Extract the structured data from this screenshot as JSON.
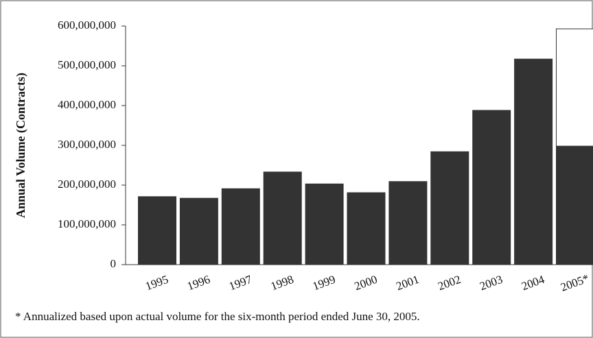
{
  "chart_data": {
    "type": "bar",
    "stacked": true,
    "y_axis_label": "Annual Volume (Contracts)",
    "footnote": "* Annualized based upon actual volume for the six-month period ended June 30, 2005.",
    "categories": [
      "1995",
      "1996",
      "1997",
      "1998",
      "1999",
      "2000",
      "2001",
      "2002",
      "2003",
      "2004",
      "2005*"
    ],
    "series": [
      {
        "color": "#333333",
        "values": [
          171000000,
          167000000,
          191000000,
          233000000,
          203000000,
          181000000,
          209000000,
          284000000,
          388000000,
          517000000,
          298000000
        ]
      },
      {
        "color": "#ffffff",
        "values": [
          null,
          null,
          null,
          null,
          null,
          null,
          null,
          null,
          null,
          null,
          295000000
        ]
      }
    ],
    "ylim": [
      0,
      600000000
    ],
    "yticks": [
      0,
      {
        "value": 100000000,
        "label": "100,000,000"
      },
      {
        "value": 200000000,
        "label": "200,000,000"
      },
      {
        "value": 300000000,
        "label": "300,000,000"
      },
      {
        "value": 400000000,
        "label": "400,000,000"
      },
      {
        "value": 500000000,
        "label": "500,000,000"
      },
      {
        "value": 600000000,
        "label": "600,000,000"
      }
    ],
    "grid": false
  }
}
